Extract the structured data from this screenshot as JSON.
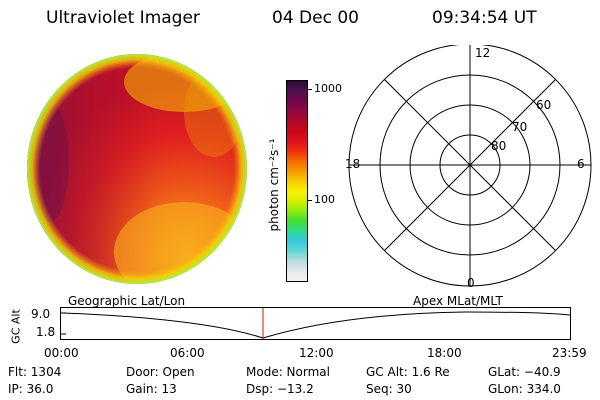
{
  "header": {
    "instrument": "Ultraviolet Imager",
    "date": "04 Dec 00",
    "time": "09:34:54 UT"
  },
  "colorbar": {
    "label": "photon cm⁻²s⁻¹",
    "ticks": [
      "1000",
      "100"
    ],
    "colors": [
      "#f2f2f2",
      "#e3e8e8",
      "#b8dce0",
      "#60d8d4",
      "#34c8e0",
      "#30d890",
      "#40e030",
      "#90ea10",
      "#d8f000",
      "#f8f000",
      "#f8c800",
      "#f89800",
      "#f86800",
      "#f03010",
      "#e01020",
      "#c80818",
      "#b00828",
      "#900840",
      "#700850",
      "#501048",
      "#2c0838"
    ]
  },
  "polar_plot": {
    "latitude_labels": [
      "60",
      "70",
      "80"
    ],
    "mlt_labels": [
      "12",
      "18",
      "6",
      "0"
    ]
  },
  "altitude_strip": {
    "ylabel": "GC Alt",
    "y_ticks": [
      "9.0",
      "1.8"
    ],
    "left_caption": "Geographic Lat/Lon",
    "right_caption": "Apex  MLat/MLT",
    "x_ticks": [
      "00:00",
      "06:00",
      "12:00",
      "18:00",
      "23:59"
    ]
  },
  "status": {
    "flt": "Flt: 1304",
    "ip": "IP: 36.0",
    "door": "Door: Open",
    "gain": "Gain: 13",
    "mode": "Mode: Normal",
    "dsp": "Dsp:  −13.2",
    "gc_alt": "GC Alt: 1.6 Re",
    "seq": "Seq: 30",
    "glat": "GLat: −40.9",
    "glon": "GLon: 334.0"
  }
}
